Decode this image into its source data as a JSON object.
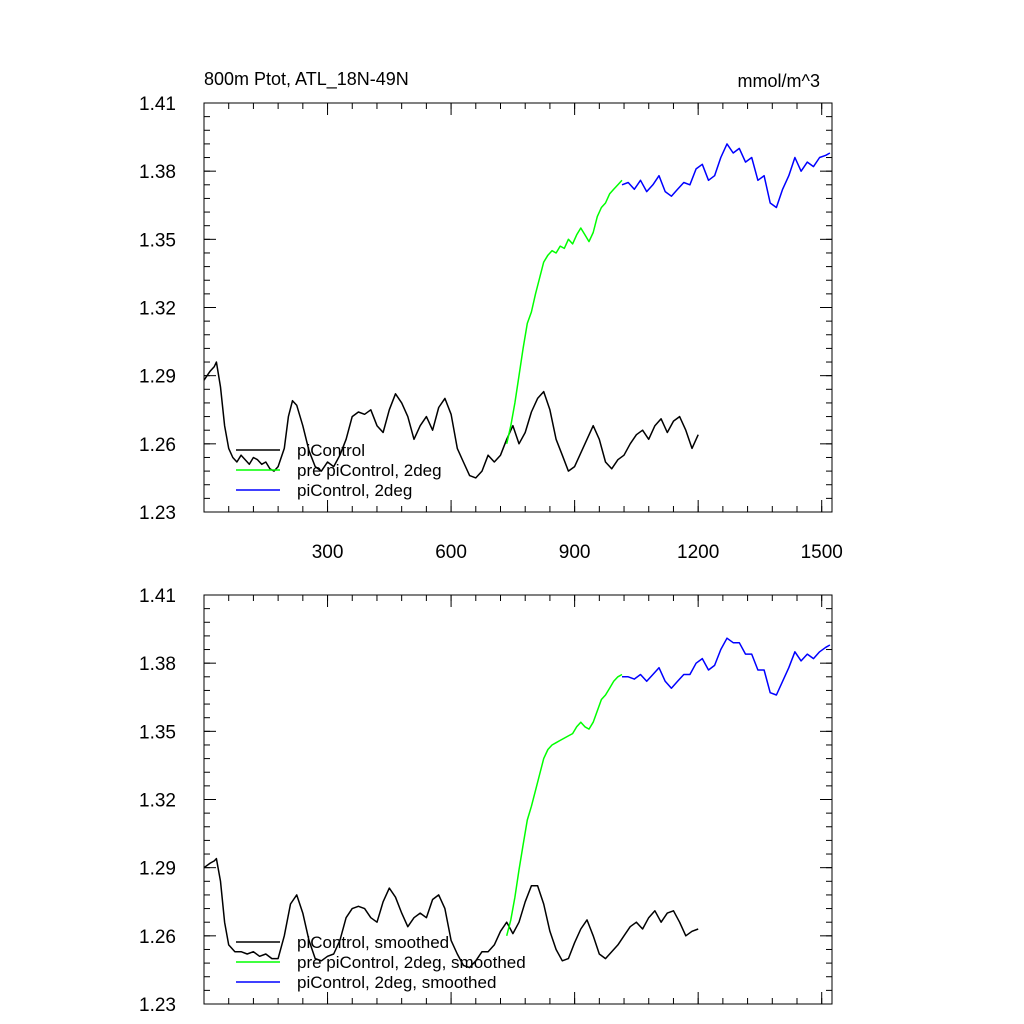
{
  "chart_data": [
    {
      "type": "line",
      "title_left": "800m Ptot, ATL_18N-49N",
      "title_right": "mmol/m^3",
      "xlim": [
        0,
        1525
      ],
      "ylim": [
        1.23,
        1.41
      ],
      "x_ticks": [
        300,
        600,
        900,
        1200,
        1500
      ],
      "x_tick_labels": [
        "300",
        "600",
        "900",
        "1200",
        "1500"
      ],
      "y_ticks": [
        1.23,
        1.26,
        1.29,
        1.32,
        1.35,
        1.38,
        1.41
      ],
      "y_tick_labels": [
        "1.23",
        "1.26",
        "1.29",
        "1.32",
        "1.35",
        "1.38",
        "1.41"
      ],
      "legend": [
        {
          "label": "piControl",
          "color": "#000000"
        },
        {
          "label": "pre piControl, 2deg",
          "color": "#00ff00"
        },
        {
          "label": "piControl, 2deg",
          "color": "#0000ff"
        }
      ],
      "series": [
        {
          "name": "piControl",
          "color": "#000000",
          "x": [
            0,
            15,
            25,
            30,
            40,
            50,
            60,
            70,
            80,
            90,
            100,
            110,
            120,
            130,
            140,
            150,
            160,
            170,
            180,
            195,
            205,
            215,
            225,
            240,
            255,
            270,
            285,
            300,
            315,
            330,
            345,
            360,
            375,
            390,
            405,
            420,
            435,
            450,
            465,
            480,
            495,
            510,
            525,
            540,
            555,
            570,
            585,
            600,
            615,
            630,
            645,
            660,
            675,
            690,
            705,
            720,
            735,
            750,
            765,
            780,
            795,
            810,
            825,
            840,
            855,
            870,
            885,
            900,
            915,
            930,
            945,
            960,
            975,
            990,
            1005,
            1020,
            1035,
            1050,
            1065,
            1080,
            1095,
            1110,
            1125,
            1140,
            1155,
            1170,
            1185,
            1200
          ],
          "y": [
            1.288,
            1.292,
            1.294,
            1.296,
            1.285,
            1.268,
            1.258,
            1.254,
            1.252,
            1.255,
            1.253,
            1.251,
            1.254,
            1.253,
            1.251,
            1.252,
            1.249,
            1.248,
            1.25,
            1.258,
            1.272,
            1.279,
            1.277,
            1.268,
            1.257,
            1.25,
            1.248,
            1.252,
            1.25,
            1.255,
            1.262,
            1.272,
            1.274,
            1.273,
            1.275,
            1.268,
            1.265,
            1.275,
            1.282,
            1.278,
            1.272,
            1.262,
            1.268,
            1.272,
            1.266,
            1.276,
            1.28,
            1.273,
            1.258,
            1.252,
            1.246,
            1.245,
            1.248,
            1.255,
            1.252,
            1.255,
            1.262,
            1.268,
            1.26,
            1.265,
            1.274,
            1.28,
            1.283,
            1.275,
            1.262,
            1.255,
            1.248,
            1.25,
            1.256,
            1.262,
            1.268,
            1.262,
            1.252,
            1.249,
            1.253,
            1.255,
            1.26,
            1.264,
            1.266,
            1.262,
            1.268,
            1.271,
            1.265,
            1.27,
            1.272,
            1.266,
            1.258,
            1.264
          ]
        },
        {
          "name": "pre piControl, 2deg",
          "color": "#00ff00",
          "x": [
            735,
            745,
            755,
            765,
            775,
            785,
            795,
            805,
            815,
            825,
            835,
            845,
            855,
            865,
            875,
            885,
            895,
            905,
            915,
            925,
            935,
            945,
            955,
            965,
            975,
            985,
            995,
            1005,
            1015
          ],
          "y": [
            1.26,
            1.268,
            1.278,
            1.29,
            1.302,
            1.313,
            1.318,
            1.326,
            1.333,
            1.34,
            1.343,
            1.345,
            1.344,
            1.347,
            1.346,
            1.35,
            1.348,
            1.352,
            1.355,
            1.352,
            1.349,
            1.353,
            1.36,
            1.364,
            1.366,
            1.37,
            1.372,
            1.374,
            1.376
          ]
        },
        {
          "name": "piControl, 2deg",
          "color": "#0000ff",
          "x": [
            1015,
            1030,
            1045,
            1060,
            1075,
            1090,
            1105,
            1120,
            1135,
            1150,
            1165,
            1180,
            1195,
            1210,
            1225,
            1240,
            1255,
            1270,
            1285,
            1300,
            1315,
            1330,
            1345,
            1360,
            1375,
            1390,
            1405,
            1420,
            1435,
            1450,
            1465,
            1480,
            1495,
            1510,
            1520
          ],
          "y": [
            1.374,
            1.375,
            1.372,
            1.376,
            1.371,
            1.374,
            1.378,
            1.371,
            1.369,
            1.372,
            1.375,
            1.374,
            1.381,
            1.383,
            1.376,
            1.378,
            1.386,
            1.392,
            1.388,
            1.39,
            1.384,
            1.386,
            1.376,
            1.378,
            1.366,
            1.364,
            1.372,
            1.378,
            1.386,
            1.38,
            1.384,
            1.382,
            1.386,
            1.387,
            1.388
          ]
        }
      ]
    },
    {
      "type": "line",
      "xlim": [
        0,
        1525
      ],
      "ylim": [
        1.23,
        1.41
      ],
      "x_ticks": [
        300,
        600,
        900,
        1200,
        1500
      ],
      "y_ticks": [
        1.23,
        1.26,
        1.29,
        1.32,
        1.35,
        1.38,
        1.41
      ],
      "y_tick_labels": [
        "1.23",
        "1.26",
        "1.29",
        "1.32",
        "1.35",
        "1.38",
        "1.41"
      ],
      "legend": [
        {
          "label": "piControl, smoothed",
          "color": "#000000"
        },
        {
          "label": "pre piControl, 2deg, smoothed",
          "color": "#00ff00"
        },
        {
          "label": "piControl, 2deg, smoothed",
          "color": "#0000ff"
        }
      ],
      "series": [
        {
          "name": "piControl, smoothed",
          "color": "#000000",
          "x": [
            0,
            15,
            25,
            30,
            40,
            50,
            60,
            75,
            90,
            105,
            120,
            135,
            150,
            165,
            180,
            195,
            210,
            225,
            240,
            255,
            270,
            285,
            300,
            315,
            330,
            345,
            360,
            375,
            390,
            405,
            420,
            435,
            450,
            465,
            480,
            495,
            510,
            525,
            540,
            555,
            570,
            585,
            600,
            615,
            630,
            645,
            660,
            675,
            690,
            705,
            720,
            735,
            750,
            765,
            780,
            795,
            810,
            825,
            840,
            855,
            870,
            885,
            900,
            915,
            930,
            945,
            960,
            975,
            990,
            1005,
            1020,
            1035,
            1050,
            1065,
            1080,
            1095,
            1110,
            1125,
            1140,
            1155,
            1170,
            1185,
            1200
          ],
          "y": [
            1.29,
            1.292,
            1.293,
            1.294,
            1.284,
            1.266,
            1.256,
            1.253,
            1.253,
            1.252,
            1.253,
            1.251,
            1.252,
            1.25,
            1.25,
            1.26,
            1.274,
            1.278,
            1.27,
            1.258,
            1.25,
            1.249,
            1.251,
            1.252,
            1.258,
            1.268,
            1.272,
            1.273,
            1.272,
            1.268,
            1.266,
            1.275,
            1.281,
            1.277,
            1.27,
            1.264,
            1.268,
            1.27,
            1.268,
            1.276,
            1.278,
            1.272,
            1.258,
            1.252,
            1.247,
            1.246,
            1.249,
            1.253,
            1.253,
            1.256,
            1.262,
            1.266,
            1.261,
            1.266,
            1.275,
            1.282,
            1.282,
            1.274,
            1.262,
            1.254,
            1.249,
            1.25,
            1.257,
            1.263,
            1.267,
            1.26,
            1.252,
            1.25,
            1.253,
            1.256,
            1.26,
            1.264,
            1.266,
            1.263,
            1.268,
            1.271,
            1.266,
            1.27,
            1.271,
            1.266,
            1.26,
            1.262,
            1.263
          ]
        },
        {
          "name": "pre piControl, 2deg, smoothed",
          "color": "#00ff00",
          "x": [
            735,
            745,
            755,
            765,
            775,
            785,
            795,
            805,
            815,
            825,
            835,
            845,
            855,
            865,
            875,
            885,
            895,
            905,
            915,
            925,
            935,
            945,
            955,
            965,
            975,
            985,
            995,
            1005,
            1015
          ],
          "y": [
            1.26,
            1.267,
            1.277,
            1.289,
            1.3,
            1.311,
            1.317,
            1.324,
            1.331,
            1.338,
            1.342,
            1.344,
            1.345,
            1.346,
            1.347,
            1.348,
            1.349,
            1.352,
            1.354,
            1.352,
            1.351,
            1.354,
            1.359,
            1.364,
            1.366,
            1.369,
            1.372,
            1.374,
            1.375
          ]
        },
        {
          "name": "piControl, 2deg, smoothed",
          "color": "#0000ff",
          "x": [
            1015,
            1030,
            1045,
            1060,
            1075,
            1090,
            1105,
            1120,
            1135,
            1150,
            1165,
            1180,
            1195,
            1210,
            1225,
            1240,
            1255,
            1270,
            1285,
            1300,
            1315,
            1330,
            1345,
            1360,
            1375,
            1390,
            1405,
            1420,
            1435,
            1450,
            1465,
            1480,
            1495,
            1510,
            1520
          ],
          "y": [
            1.374,
            1.374,
            1.373,
            1.375,
            1.372,
            1.375,
            1.378,
            1.372,
            1.369,
            1.372,
            1.375,
            1.375,
            1.38,
            1.382,
            1.377,
            1.379,
            1.386,
            1.391,
            1.389,
            1.389,
            1.384,
            1.384,
            1.377,
            1.377,
            1.367,
            1.366,
            1.372,
            1.378,
            1.385,
            1.381,
            1.384,
            1.382,
            1.385,
            1.387,
            1.388
          ]
        }
      ]
    }
  ]
}
